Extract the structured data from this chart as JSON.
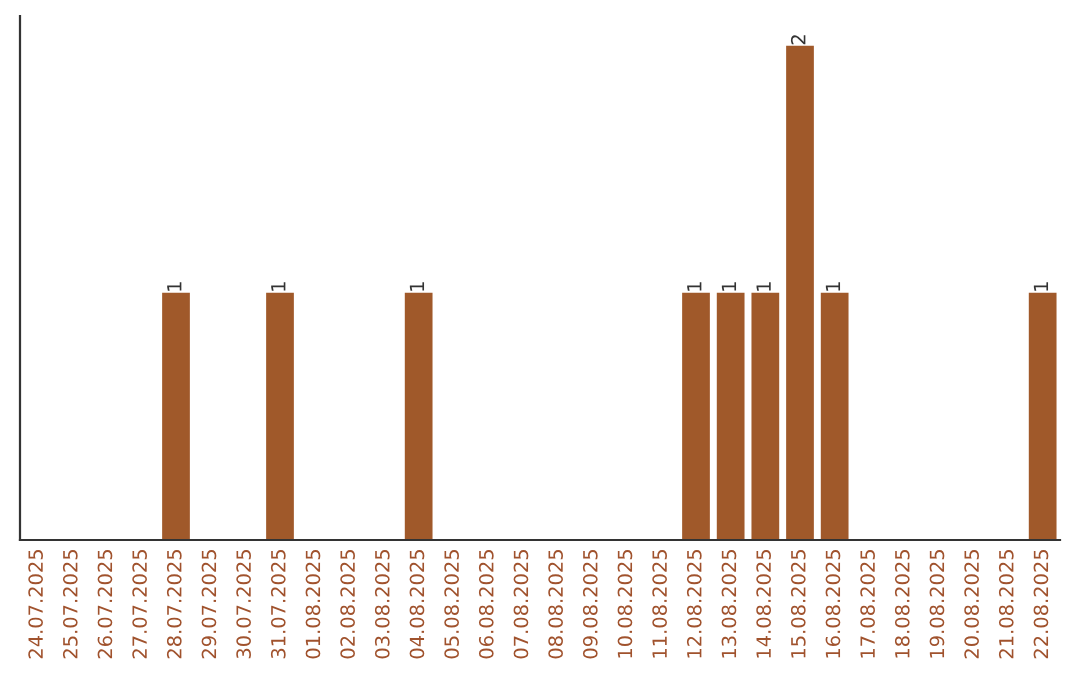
{
  "chart_data": {
    "type": "bar",
    "categories": [
      "24.07.2025",
      "25.07.2025",
      "26.07.2025",
      "27.07.2025",
      "28.07.2025",
      "29.07.2025",
      "30.07.2025",
      "31.07.2025",
      "01.08.2025",
      "02.08.2025",
      "03.08.2025",
      "04.08.2025",
      "05.08.2025",
      "06.08.2025",
      "07.08.2025",
      "08.08.2025",
      "09.08.2025",
      "10.08.2025",
      "11.08.2025",
      "12.08.2025",
      "13.08.2025",
      "14.08.2025",
      "15.08.2025",
      "16.08.2025",
      "17.08.2025",
      "18.08.2025",
      "19.08.2025",
      "20.08.2025",
      "21.08.2025",
      "22.08.2025"
    ],
    "values": [
      0,
      0,
      0,
      0,
      1,
      0,
      0,
      1,
      0,
      0,
      0,
      1,
      0,
      0,
      0,
      0,
      0,
      0,
      0,
      1,
      1,
      1,
      2,
      1,
      0,
      0,
      0,
      0,
      0,
      1
    ],
    "value_labels": [
      null,
      null,
      null,
      null,
      "1",
      null,
      null,
      "1",
      null,
      null,
      null,
      "1",
      null,
      null,
      null,
      null,
      null,
      null,
      null,
      "1",
      "1",
      "1",
      "2",
      "1",
      null,
      null,
      null,
      null,
      null,
      "1"
    ],
    "color": "#a0592a",
    "tick_labels": "x",
    "grid": false,
    "legend": false
  }
}
